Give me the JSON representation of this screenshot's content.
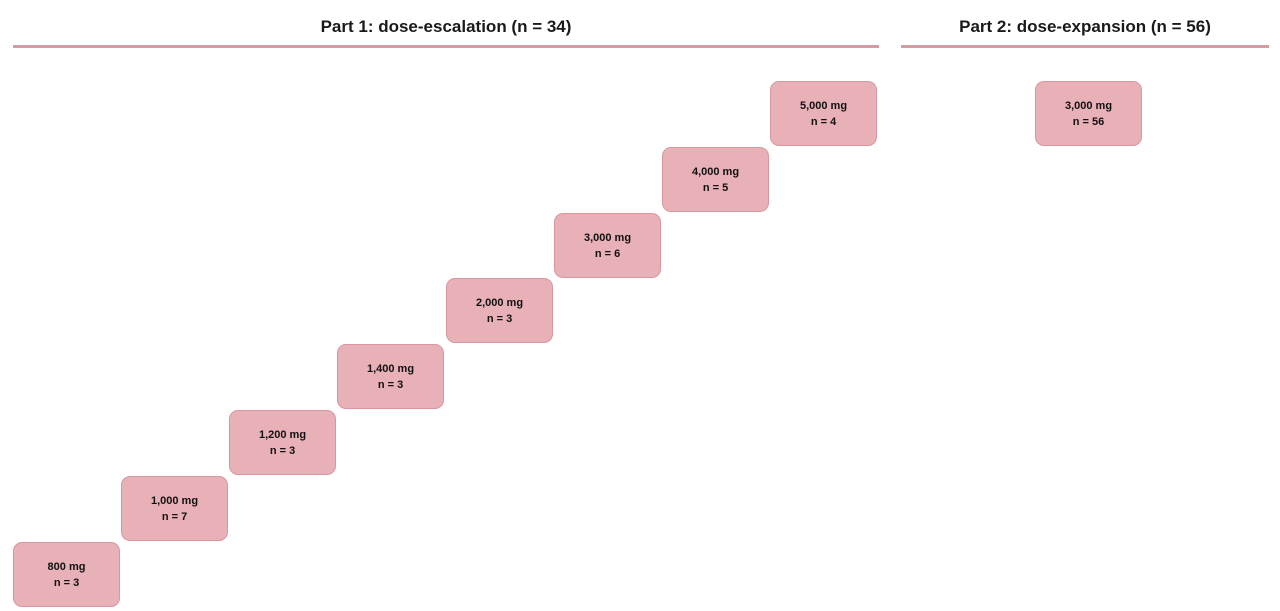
{
  "part1": {
    "title": "Part 1: dose-escalation (n = 34)",
    "cohorts": [
      {
        "dose": "800 mg",
        "n": "n = 3"
      },
      {
        "dose": "1,000 mg",
        "n": "n = 7"
      },
      {
        "dose": "1,200 mg",
        "n": "n = 3"
      },
      {
        "dose": "1,400 mg",
        "n": "n = 3"
      },
      {
        "dose": "2,000 mg",
        "n": "n = 3"
      },
      {
        "dose": "3,000 mg",
        "n": "n = 6"
      },
      {
        "dose": "4,000 mg",
        "n": "n = 5"
      },
      {
        "dose": "5,000 mg",
        "n": "n = 4"
      }
    ]
  },
  "part2": {
    "title": "Part 2: dose-expansion (n = 56)",
    "cohorts": [
      {
        "dose": "3,000 mg",
        "n": "n = 56"
      }
    ]
  },
  "colors": {
    "box_fill": "#e8b0b7",
    "box_border": "#d9969f",
    "divider": "#d99aa3"
  }
}
